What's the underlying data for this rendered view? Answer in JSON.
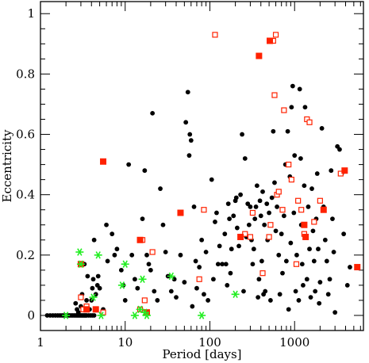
{
  "chart_data": {
    "type": "scatter",
    "xlabel": "Period [days]",
    "ylabel": "Eccentricity",
    "x_scale": "log",
    "xlim": [
      1,
      6500
    ],
    "ylim": [
      -0.05,
      1.04
    ],
    "x_ticks": [
      1,
      10,
      100,
      1000
    ],
    "x_tick_labels": [
      "1",
      "10",
      "100",
      "1000"
    ],
    "y_ticks": [
      0,
      0.2,
      0.4,
      0.6,
      0.8,
      1
    ],
    "y_tick_labels": [
      "0",
      "0.2",
      "0.4",
      "0.6",
      "0.8",
      "1"
    ],
    "colors": {
      "black": "#000000",
      "red": "#ff2200",
      "green": "#22ee22"
    },
    "series": [
      {
        "marker": "filled-circle",
        "color": "#000000",
        "points": [
          [
            1.2,
            0
          ],
          [
            1.3,
            0
          ],
          [
            1.4,
            0
          ],
          [
            1.5,
            0
          ],
          [
            1.6,
            0
          ],
          [
            1.7,
            0
          ],
          [
            1.8,
            0
          ],
          [
            1.9,
            0
          ],
          [
            2.0,
            0
          ],
          [
            2.1,
            0
          ],
          [
            2.2,
            0
          ],
          [
            2.3,
            0
          ],
          [
            2.4,
            0
          ],
          [
            2.5,
            0
          ],
          [
            2.6,
            0
          ],
          [
            2.7,
            0
          ],
          [
            2.8,
            0
          ],
          [
            2.9,
            0
          ],
          [
            3.0,
            0
          ],
          [
            3.1,
            0
          ],
          [
            3.2,
            0
          ],
          [
            3.3,
            0
          ],
          [
            3.4,
            0
          ],
          [
            3.5,
            0
          ],
          [
            3.7,
            0
          ],
          [
            3.9,
            0
          ],
          [
            4.1,
            0
          ],
          [
            4.3,
            0
          ],
          [
            2.6,
            0.04
          ],
          [
            2.7,
            0.02
          ],
          [
            2.8,
            0.01
          ],
          [
            3.0,
            0.03
          ],
          [
            3.1,
            0.07
          ],
          [
            3.3,
            0.17
          ],
          [
            3.5,
            0.05
          ],
          [
            3.6,
            0.13
          ],
          [
            3.8,
            0.02
          ],
          [
            4.0,
            0.05
          ],
          [
            4.1,
            0.09
          ],
          [
            4.2,
            0.12
          ],
          [
            4.3,
            0.25
          ],
          [
            4.5,
            0.07
          ],
          [
            4.7,
            0.1
          ],
          [
            4.8,
            0.13
          ],
          [
            5.0,
            0.09
          ],
          [
            5.5,
            0.02
          ],
          [
            6.0,
            0.3
          ],
          [
            6.2,
            0.18
          ],
          [
            7.0,
            0.27
          ],
          [
            7.5,
            0.2
          ],
          [
            8.0,
            0.22
          ],
          [
            9.0,
            0.15
          ],
          [
            9.5,
            0.1
          ],
          [
            10.0,
            0.05
          ],
          [
            11,
            0.5
          ],
          [
            12,
            0.2
          ],
          [
            13,
            0.12
          ],
          [
            14,
            0.09
          ],
          [
            15,
            0.25
          ],
          [
            16,
            0.32
          ],
          [
            17,
            0.48
          ],
          [
            18,
            0.2
          ],
          [
            19,
            0.17
          ],
          [
            20,
            0.15
          ],
          [
            21,
            0.67
          ],
          [
            22,
            0.08
          ],
          [
            24,
            0.05
          ],
          [
            26,
            0.42
          ],
          [
            28,
            0.3
          ],
          [
            30,
            0.21
          ],
          [
            32,
            0.13
          ],
          [
            35,
            0.08
          ],
          [
            38,
            0.12
          ],
          [
            40,
            0.06
          ],
          [
            45,
            0.2
          ],
          [
            50,
            0.11
          ],
          [
            52,
            0.64
          ],
          [
            55,
            0.74
          ],
          [
            57,
            0.53
          ],
          [
            58,
            0.6
          ],
          [
            60,
            0.58
          ],
          [
            62,
            0.03
          ],
          [
            65,
            0.36
          ],
          [
            68,
            0.18
          ],
          [
            70,
            0.09
          ],
          [
            75,
            0.16
          ],
          [
            80,
            0.25
          ],
          [
            85,
            0.07
          ],
          [
            90,
            0.21
          ],
          [
            95,
            0.05
          ],
          [
            105,
            0.45
          ],
          [
            110,
            0.12
          ],
          [
            115,
            0.31
          ],
          [
            120,
            0.34
          ],
          [
            125,
            0.17
          ],
          [
            130,
            0.23
          ],
          [
            140,
            0.17
          ],
          [
            150,
            0.27
          ],
          [
            155,
            0.17
          ],
          [
            160,
            0.1
          ],
          [
            165,
            0.37
          ],
          [
            170,
            0.32
          ],
          [
            175,
            0.14
          ],
          [
            180,
            0.22
          ],
          [
            190,
            0.33
          ],
          [
            200,
            0.38
          ],
          [
            205,
            0.39
          ],
          [
            210,
            0.29
          ],
          [
            220,
            0.23
          ],
          [
            230,
            0.4
          ],
          [
            240,
            0.6
          ],
          [
            250,
            0.08
          ],
          [
            260,
            0.52
          ],
          [
            270,
            0.26
          ],
          [
            280,
            0.37
          ],
          [
            290,
            0.3
          ],
          [
            300,
            0.36
          ],
          [
            310,
            0.25
          ],
          [
            320,
            0.17
          ],
          [
            330,
            0.22
          ],
          [
            340,
            0.32
          ],
          [
            350,
            0.36
          ],
          [
            360,
            0.43
          ],
          [
            370,
            0.06
          ],
          [
            380,
            0.12
          ],
          [
            390,
            0.38
          ],
          [
            400,
            0.33
          ],
          [
            410,
            0.18
          ],
          [
            420,
            0.41
          ],
          [
            430,
            0.07
          ],
          [
            440,
            0.3
          ],
          [
            450,
            0.08
          ],
          [
            470,
            0.37
          ],
          [
            480,
            0.25
          ],
          [
            500,
            0.34
          ],
          [
            520,
            0.05
          ],
          [
            540,
            0.39
          ],
          [
            560,
            0.61
          ],
          [
            580,
            0.44
          ],
          [
            600,
            0.28
          ],
          [
            620,
            0.36
          ],
          [
            650,
            0.2
          ],
          [
            670,
            0.07
          ],
          [
            700,
            0.27
          ],
          [
            720,
            0.14
          ],
          [
            750,
            0.33
          ],
          [
            780,
            0.5
          ],
          [
            800,
            0.18
          ],
          [
            830,
            0.61
          ],
          [
            850,
            0.02
          ],
          [
            880,
            0.46
          ],
          [
            900,
            0.24
          ],
          [
            920,
            0.69
          ],
          [
            950,
            0.76
          ],
          [
            980,
            0.34
          ],
          [
            1000,
            0.53
          ],
          [
            1030,
            0.08
          ],
          [
            1060,
            0.2
          ],
          [
            1090,
            0.38
          ],
          [
            1120,
            0.05
          ],
          [
            1150,
            0.75
          ],
          [
            1180,
            0.52
          ],
          [
            1200,
            0.3
          ],
          [
            1230,
            0.17
          ],
          [
            1260,
            0.1
          ],
          [
            1300,
            0.43
          ],
          [
            1330,
            0.69
          ],
          [
            1360,
            0.26
          ],
          [
            1400,
            0.12
          ],
          [
            1450,
            0.36
          ],
          [
            1500,
            0.22
          ],
          [
            1550,
            0.06
          ],
          [
            1600,
            0.42
          ],
          [
            1650,
            0.28
          ],
          [
            1700,
            0.18
          ],
          [
            1750,
            0.08
          ],
          [
            1800,
            0.32
          ],
          [
            1850,
            0.47
          ],
          [
            1900,
            0.22
          ],
          [
            1950,
            0.04
          ],
          [
            2000,
            0.11
          ],
          [
            2100,
            0.62
          ],
          [
            2200,
            0.36
          ],
          [
            2300,
            0.25
          ],
          [
            2400,
            0.18
          ],
          [
            2500,
            0.07
          ],
          [
            2600,
            0.12
          ],
          [
            2700,
            0.48
          ],
          [
            2800,
            0.32
          ],
          [
            2900,
            0.21
          ],
          [
            3000,
            0.01
          ],
          [
            3200,
            0.56
          ],
          [
            3400,
            0.55
          ],
          [
            3600,
            0.47
          ],
          [
            3800,
            0.27
          ],
          [
            4200,
            0.1
          ],
          [
            4500,
            0.16
          ]
        ]
      },
      {
        "marker": "open-square",
        "color": "#ff2200",
        "points": [
          [
            3.0,
            0.06
          ],
          [
            3.2,
            0.02
          ],
          [
            3.5,
            0.03
          ],
          [
            4.5,
            0.02
          ],
          [
            5.5,
            0.01
          ],
          [
            15,
            0.02
          ],
          [
            16,
            0.25
          ],
          [
            17,
            0.05
          ],
          [
            18,
            0.01
          ],
          [
            21,
            0.21
          ],
          [
            75,
            0.12
          ],
          [
            85,
            0.35
          ],
          [
            115,
            0.93
          ],
          [
            230,
            0.26
          ],
          [
            260,
            0.27
          ],
          [
            300,
            0.26
          ],
          [
            320,
            0.34
          ],
          [
            420,
            0.14
          ],
          [
            500,
            0.26
          ],
          [
            520,
            0.3
          ],
          [
            560,
            0.91
          ],
          [
            580,
            0.73
          ],
          [
            600,
            0.93
          ],
          [
            620,
            0.4
          ],
          [
            650,
            0.41
          ],
          [
            720,
            0.35
          ],
          [
            750,
            0.68
          ],
          [
            850,
            0.5
          ],
          [
            920,
            0.45
          ],
          [
            1050,
            0.17
          ],
          [
            1100,
            0.38
          ],
          [
            1200,
            0.35
          ],
          [
            1300,
            0.27
          ],
          [
            1400,
            0.65
          ],
          [
            1500,
            0.64
          ],
          [
            1700,
            0.31
          ],
          [
            2000,
            0.38
          ],
          [
            2200,
            0.35
          ],
          [
            3500,
            0.47
          ]
        ]
      },
      {
        "marker": "filled-square",
        "color": "#ff2200",
        "points": [
          [
            3.0,
            0.17
          ],
          [
            3.5,
            0.02
          ],
          [
            4.5,
            0.02
          ],
          [
            5.5,
            0.51
          ],
          [
            15,
            0.25
          ],
          [
            18,
            0.01
          ],
          [
            45,
            0.34
          ],
          [
            230,
            0.26
          ],
          [
            380,
            0.86
          ],
          [
            510,
            0.91
          ],
          [
            1300,
            0.3
          ],
          [
            1350,
            0.26
          ],
          [
            2200,
            0.35
          ],
          [
            3900,
            0.48
          ],
          [
            5500,
            0.16
          ]
        ]
      },
      {
        "marker": "star",
        "color": "#22ee22",
        "points": [
          [
            2.0,
            0
          ],
          [
            2.9,
            0.21
          ],
          [
            3.0,
            0.17
          ],
          [
            4.2,
            0.06
          ],
          [
            4.8,
            0.2
          ],
          [
            5.2,
            0
          ],
          [
            9.2,
            0.1
          ],
          [
            10,
            0.17
          ],
          [
            13,
            0
          ],
          [
            15,
            0.02
          ],
          [
            16,
            0.12
          ],
          [
            17,
            0.01
          ],
          [
            18,
            0
          ],
          [
            35,
            0.13
          ],
          [
            80,
            0
          ],
          [
            200,
            0.07
          ]
        ]
      }
    ]
  }
}
